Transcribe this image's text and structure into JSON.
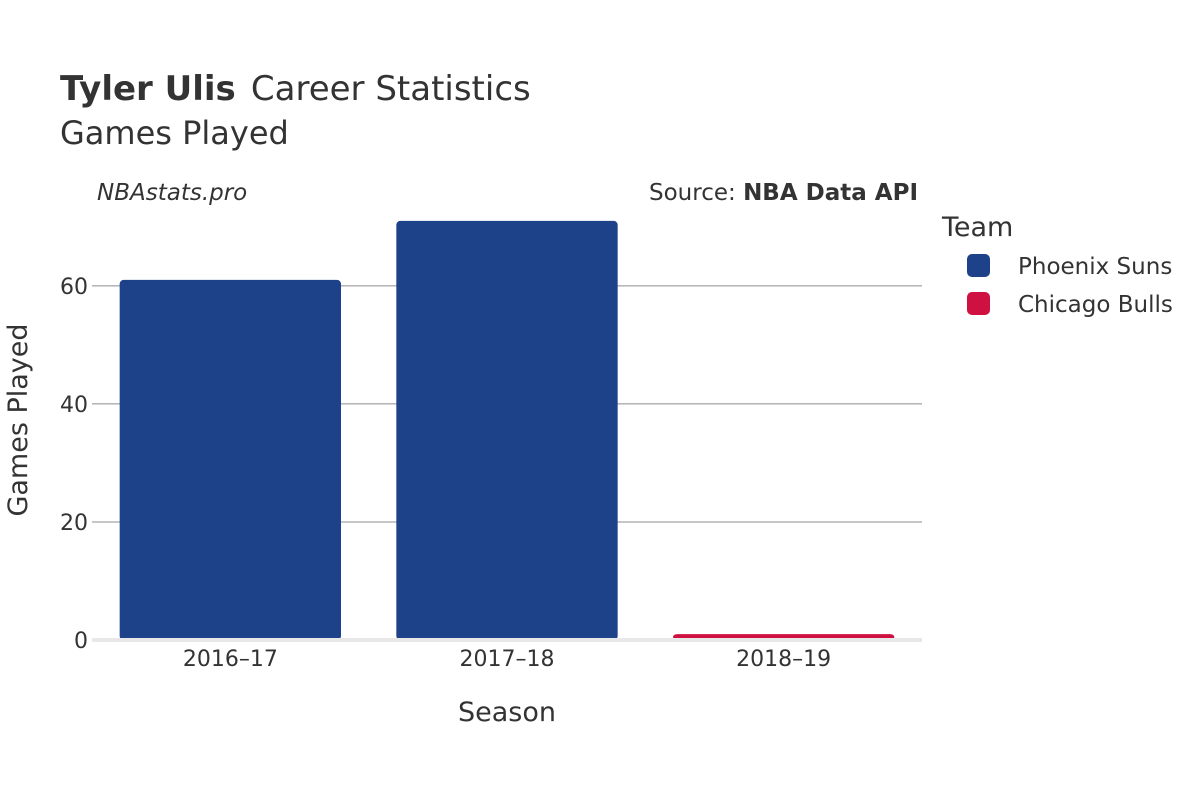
{
  "title": {
    "bold": "Tyler Ulis",
    "rest": "Career Statistics",
    "subtitle": "Games Played"
  },
  "watermark": "NBAstats.pro",
  "source": {
    "prefix": "Source: ",
    "name": "NBA Data API"
  },
  "legend": {
    "title": "Team",
    "placement": "right"
  },
  "chart_data": {
    "type": "bar",
    "xlabel": "Season",
    "ylabel": "Games Played",
    "ylim": [
      0,
      72
    ],
    "yticks": [
      0,
      20,
      40,
      60
    ],
    "grid": true,
    "categories": [
      "2016–17",
      "2017–18",
      "2018–19"
    ],
    "series": [
      {
        "name": "Phoenix Suns",
        "color": "#1d428a",
        "values": [
          61,
          71,
          null
        ]
      },
      {
        "name": "Chicago Bulls",
        "color": "#ce1141",
        "values": [
          null,
          null,
          1
        ]
      }
    ]
  }
}
